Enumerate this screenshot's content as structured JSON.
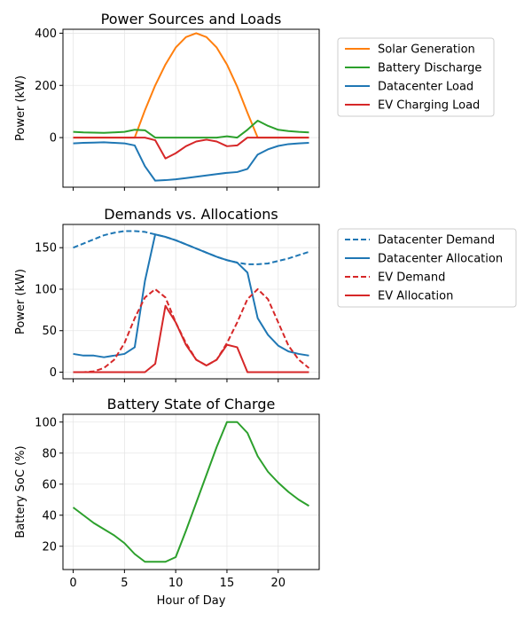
{
  "chart_data": [
    {
      "type": "line",
      "title": "Power Sources and Loads",
      "xlabel": "",
      "ylabel": "Power (kW)",
      "xlim": [
        -1,
        24
      ],
      "ylim": [
        -190,
        415
      ],
      "xticks": [
        0,
        5,
        10,
        15,
        20
      ],
      "yticks": [
        0,
        200,
        400
      ],
      "grid": true,
      "legend": "outside-right",
      "x": [
        0,
        1,
        2,
        3,
        4,
        5,
        6,
        7,
        8,
        9,
        10,
        11,
        12,
        13,
        14,
        15,
        16,
        17,
        18,
        19,
        20,
        21,
        22,
        23
      ],
      "series": [
        {
          "name": "Solar Generation",
          "color": "#ff7f0e",
          "dash": "solid",
          "values": [
            0,
            0,
            0,
            0,
            0,
            0,
            0,
            105,
            200,
            280,
            345,
            385,
            400,
            385,
            345,
            280,
            195,
            95,
            0,
            0,
            0,
            0,
            0,
            0
          ]
        },
        {
          "name": "Battery Discharge",
          "color": "#2ca02c",
          "dash": "solid",
          "values": [
            22,
            20,
            19,
            18,
            20,
            22,
            30,
            28,
            0,
            0,
            0,
            0,
            0,
            0,
            0,
            5,
            0,
            30,
            65,
            45,
            30,
            25,
            22,
            20
          ]
        },
        {
          "name": "Datacenter Load",
          "color": "#1f77b4",
          "dash": "solid",
          "values": [
            -22,
            -20,
            -19,
            -18,
            -20,
            -22,
            -30,
            -110,
            -165,
            -163,
            -160,
            -155,
            -150,
            -145,
            -140,
            -135,
            -132,
            -120,
            -65,
            -45,
            -32,
            -25,
            -22,
            -20
          ]
        },
        {
          "name": "EV Charging Load",
          "color": "#d62728",
          "dash": "solid",
          "values": [
            0,
            0,
            0,
            0,
            0,
            0,
            0,
            0,
            -10,
            -80,
            -60,
            -33,
            -15,
            -8,
            -15,
            -33,
            -30,
            0,
            0,
            0,
            0,
            0,
            0,
            0
          ]
        }
      ]
    },
    {
      "type": "line",
      "title": "Demands vs. Allocations",
      "xlabel": "",
      "ylabel": "Power (kW)",
      "xlim": [
        -1,
        24
      ],
      "ylim": [
        -8,
        178
      ],
      "xticks": [
        0,
        5,
        10,
        15,
        20
      ],
      "yticks": [
        0,
        50,
        100,
        150
      ],
      "grid": true,
      "legend": "outside-right",
      "x": [
        0,
        1,
        2,
        3,
        4,
        5,
        6,
        7,
        8,
        9,
        10,
        11,
        12,
        13,
        14,
        15,
        16,
        17,
        18,
        19,
        20,
        21,
        22,
        23
      ],
      "series": [
        {
          "name": "Datacenter Demand",
          "color": "#1f77b4",
          "dash": "dashed",
          "values": [
            150,
            155,
            160,
            165,
            168,
            170,
            170,
            169,
            166,
            163,
            159,
            154,
            149,
            144,
            139,
            135,
            132,
            130,
            130,
            131,
            134,
            137,
            141,
            145
          ]
        },
        {
          "name": "Datacenter Allocation",
          "color": "#1f77b4",
          "dash": "solid",
          "values": [
            22,
            20,
            20,
            18,
            20,
            22,
            30,
            110,
            166,
            163,
            159,
            154,
            149,
            144,
            139,
            135,
            132,
            120,
            65,
            45,
            32,
            25,
            22,
            20
          ]
        },
        {
          "name": "EV Demand",
          "color": "#d62728",
          "dash": "dashed",
          "values": [
            0,
            0,
            1,
            5,
            15,
            35,
            65,
            90,
            100,
            90,
            60,
            35,
            15,
            8,
            15,
            35,
            60,
            88,
            100,
            88,
            60,
            32,
            15,
            5
          ]
        },
        {
          "name": "EV Allocation",
          "color": "#d62728",
          "dash": "solid",
          "values": [
            0,
            0,
            0,
            0,
            0,
            0,
            0,
            0,
            10,
            80,
            60,
            33,
            15,
            8,
            15,
            33,
            30,
            0,
            0,
            0,
            0,
            0,
            0,
            0
          ]
        }
      ]
    },
    {
      "type": "line",
      "title": "Battery State of Charge",
      "xlabel": "Hour of Day",
      "ylabel": "Battery SoC (%)",
      "xlim": [
        -1,
        24
      ],
      "ylim": [
        5,
        105
      ],
      "xticks": [
        0,
        5,
        10,
        15,
        20
      ],
      "yticks": [
        20,
        40,
        60,
        80,
        100
      ],
      "grid": true,
      "x": [
        0,
        1,
        2,
        3,
        4,
        5,
        6,
        7,
        8,
        9,
        10,
        11,
        12,
        13,
        14,
        15,
        16,
        17,
        18,
        19,
        20,
        21,
        22,
        23
      ],
      "series": [
        {
          "name": "",
          "color": "#2ca02c",
          "dash": "solid",
          "values": [
            45,
            40,
            35,
            31,
            27,
            22,
            15,
            10,
            10,
            10,
            13,
            30,
            48,
            66,
            84,
            100,
            100,
            93,
            78,
            68,
            61,
            55,
            50,
            46
          ]
        }
      ]
    }
  ]
}
